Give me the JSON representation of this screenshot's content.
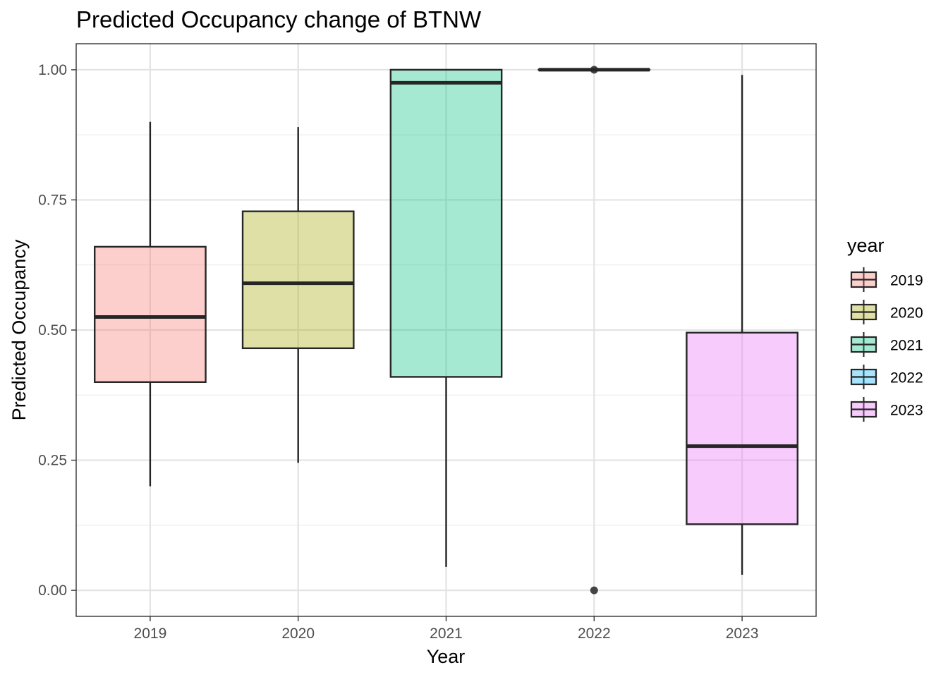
{
  "chart_data": {
    "type": "boxplot",
    "title": "Predicted Occupancy change of BTNW",
    "xlabel": "Year",
    "ylabel": "Predicted Occupancy",
    "ylim": [
      -0.05,
      1.05
    ],
    "y_ticks": [
      "0.00",
      "0.25",
      "0.50",
      "0.75",
      "1.00"
    ],
    "y_tick_values": [
      0,
      0.25,
      0.5,
      0.75,
      1.0
    ],
    "categories": [
      "2019",
      "2020",
      "2021",
      "2022",
      "2023"
    ],
    "grid": true,
    "legend": {
      "title": "year",
      "position": "right"
    },
    "boxes": [
      {
        "name": "2019",
        "color": "#F8766D",
        "whisker_low": 0.2,
        "q1": 0.4,
        "median": 0.525,
        "q3": 0.66,
        "whisker_high": 0.9,
        "outliers": []
      },
      {
        "name": "2020",
        "color": "#A3A500",
        "whisker_low": 0.245,
        "q1": 0.465,
        "median": 0.59,
        "q3": 0.728,
        "whisker_high": 0.89,
        "outliers": []
      },
      {
        "name": "2021",
        "color": "#00BF7D",
        "whisker_low": 0.045,
        "q1": 0.41,
        "median": 0.975,
        "q3": 1.0,
        "whisker_high": 1.0,
        "outliers": []
      },
      {
        "name": "2022",
        "color": "#00B0F6",
        "whisker_low": 1.0,
        "q1": 1.0,
        "median": 1.0,
        "q3": 1.0,
        "whisker_high": 1.0,
        "outliers": [
          0.0,
          1.0
        ]
      },
      {
        "name": "2023",
        "color": "#E76BF3",
        "whisker_low": 0.03,
        "q1": 0.127,
        "median": 0.277,
        "q3": 0.495,
        "whisker_high": 0.99,
        "outliers": []
      }
    ]
  }
}
